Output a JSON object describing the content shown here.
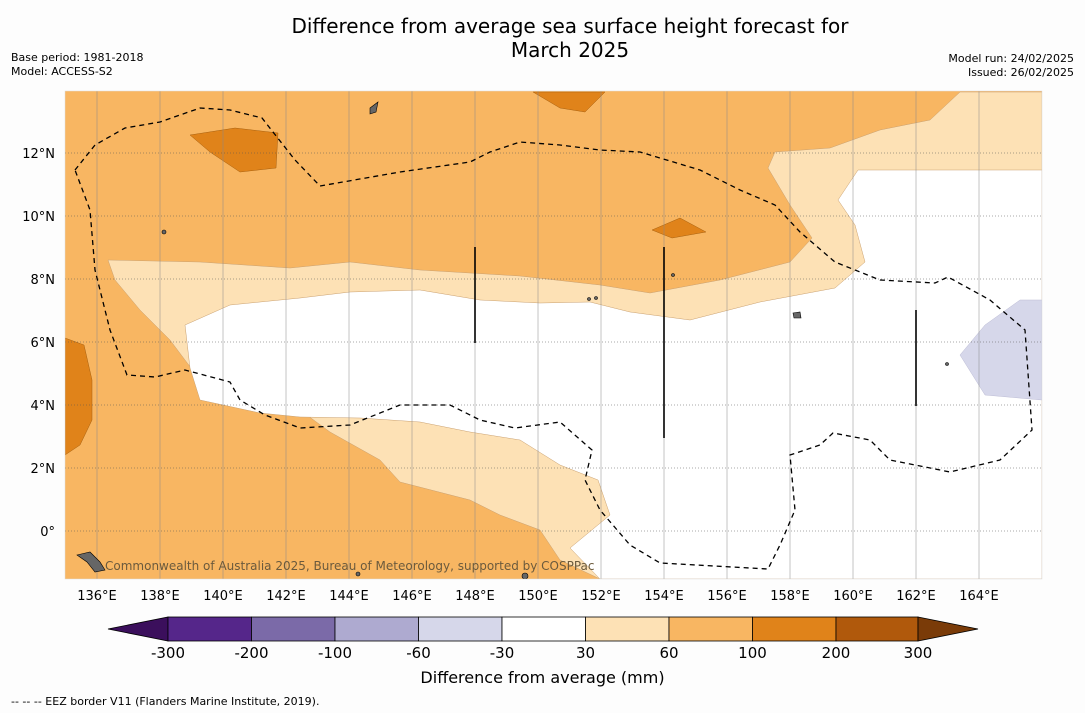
{
  "title": "Difference from average sea surface height forecast for",
  "title_line2": "March 2025",
  "base_period": "Base period: 1981-2018",
  "model": "Model: ACCESS-S2",
  "model_run": "Model run: 24/02/2025",
  "issued": "Issued: 26/02/2025",
  "credit": "Commonwealth of Australia 2025, Bureau of Meteorology, supported by COSPPac",
  "eez_note": "--  --  -- EEZ border V11 (Flanders Marine Institute, 2019).",
  "colorbar_label": "Difference from average (mm)",
  "x_ticks": [
    "136°E",
    "138°E",
    "140°E",
    "142°E",
    "144°E",
    "146°E",
    "148°E",
    "150°E",
    "152°E",
    "154°E",
    "156°E",
    "158°E",
    "160°E",
    "162°E",
    "164°E"
  ],
  "y_ticks": [
    "12°N",
    "10°N",
    "8°N",
    "6°N",
    "4°N",
    "2°N",
    "0°"
  ],
  "colorbar_ticks": [
    "-300",
    "-200",
    "-100",
    "-60",
    "-30",
    "30",
    "60",
    "100",
    "200",
    "300"
  ],
  "colors": {
    "c_-300": "#3b0f5c",
    "c_-200": "#55268a",
    "c_-100": "#7b6aa8",
    "c_-60": "#aeaad0",
    "c_-30": "#d6d7ea",
    "c_0": "#ffffff",
    "c_30": "#fde1b5",
    "c_60": "#f8b662",
    "c_100": "#e0831a",
    "c_200": "#b0590c",
    "c_300": "#7a3b08"
  }
}
